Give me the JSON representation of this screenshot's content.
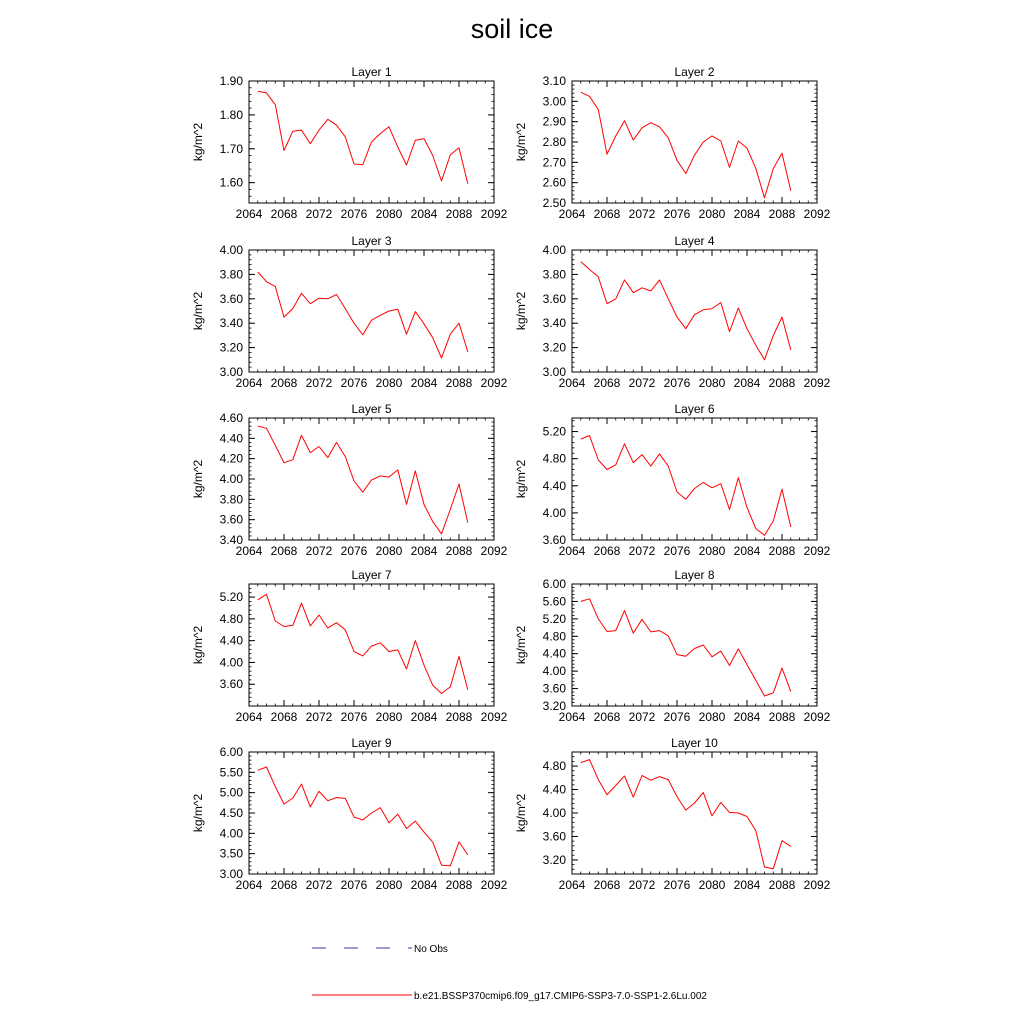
{
  "title": "soil ice",
  "x_ticks": [
    2064,
    2068,
    2072,
    2076,
    2080,
    2084,
    2088,
    2092
  ],
  "legend": {
    "entries": [
      {
        "label": "No Obs",
        "color": "#3a3aa8",
        "style": "dashed"
      },
      {
        "label": "b.e21.BSSP370cmip6.f09_g17.CMIP6-SSP3-7.0-SSP1-2.6Lu.002",
        "color": "#ff0000",
        "style": "solid"
      }
    ]
  },
  "chart_data": [
    {
      "type": "line",
      "title": "Layer 1",
      "ylabel": "kg/m^2",
      "xlim": [
        2064,
        2092
      ],
      "ylim": [
        1.54,
        1.9
      ],
      "yticks": [
        "1.60",
        "1.70",
        "1.80",
        "1.90"
      ],
      "ytick_values": [
        1.6,
        1.7,
        1.8,
        1.9
      ],
      "x": [
        2065,
        2066,
        2067,
        2068,
        2069,
        2070,
        2071,
        2072,
        2073,
        2074,
        2075,
        2076,
        2077,
        2078,
        2079,
        2080,
        2081,
        2082,
        2083,
        2084,
        2085,
        2086,
        2087,
        2088,
        2089
      ],
      "series": [
        {
          "values": [
            1.87,
            1.865,
            1.83,
            1.695,
            1.752,
            1.755,
            1.715,
            1.755,
            1.787,
            1.77,
            1.735,
            1.655,
            1.653,
            1.72,
            1.745,
            1.765,
            1.705,
            1.652,
            1.725,
            1.73,
            1.68,
            1.605,
            1.682,
            1.703,
            1.597
          ],
          "color": "#ff0000"
        }
      ]
    },
    {
      "type": "line",
      "title": "Layer 2",
      "ylabel": "kg/m^2",
      "xlim": [
        2064,
        2092
      ],
      "ylim": [
        2.5,
        3.1
      ],
      "yticks": [
        "2.50",
        "2.60",
        "2.70",
        "2.80",
        "2.90",
        "3.00",
        "3.10"
      ],
      "ytick_values": [
        2.5,
        2.6,
        2.7,
        2.8,
        2.9,
        3.0,
        3.1
      ],
      "x": [
        2065,
        2066,
        2067,
        2068,
        2069,
        2070,
        2071,
        2072,
        2073,
        2074,
        2075,
        2076,
        2077,
        2078,
        2079,
        2080,
        2081,
        2082,
        2083,
        2084,
        2085,
        2086,
        2087,
        2088,
        2089
      ],
      "series": [
        {
          "values": [
            3.045,
            3.025,
            2.96,
            2.74,
            2.83,
            2.905,
            2.81,
            2.87,
            2.895,
            2.875,
            2.82,
            2.71,
            2.645,
            2.735,
            2.8,
            2.83,
            2.805,
            2.675,
            2.805,
            2.77,
            2.67,
            2.525,
            2.67,
            2.745,
            2.56
          ],
          "color": "#ff0000"
        }
      ]
    },
    {
      "type": "line",
      "title": "Layer 3",
      "ylabel": "kg/m^2",
      "xlim": [
        2064,
        2092
      ],
      "ylim": [
        3.0,
        4.0
      ],
      "yticks": [
        "3.00",
        "3.20",
        "3.40",
        "3.60",
        "3.80",
        "4.00"
      ],
      "ytick_values": [
        3.0,
        3.2,
        3.4,
        3.6,
        3.8,
        4.0
      ],
      "x": [
        2065,
        2066,
        2067,
        2068,
        2069,
        2070,
        2071,
        2072,
        2073,
        2074,
        2075,
        2076,
        2077,
        2078,
        2079,
        2080,
        2081,
        2082,
        2083,
        2084,
        2085,
        2086,
        2087,
        2088,
        2089
      ],
      "series": [
        {
          "values": [
            3.82,
            3.74,
            3.7,
            3.45,
            3.52,
            3.645,
            3.56,
            3.605,
            3.6,
            3.635,
            3.52,
            3.4,
            3.305,
            3.425,
            3.465,
            3.5,
            3.515,
            3.31,
            3.495,
            3.395,
            3.28,
            3.115,
            3.31,
            3.4,
            3.165
          ],
          "color": "#ff0000"
        }
      ]
    },
    {
      "type": "line",
      "title": "Layer 4",
      "ylabel": "kg/m^2",
      "xlim": [
        2064,
        2092
      ],
      "ylim": [
        3.0,
        4.0
      ],
      "yticks": [
        "3.00",
        "3.20",
        "3.40",
        "3.60",
        "3.80",
        "4.00"
      ],
      "ytick_values": [
        3.0,
        3.2,
        3.4,
        3.6,
        3.8,
        4.0
      ],
      "x": [
        2065,
        2066,
        2067,
        2068,
        2069,
        2070,
        2071,
        2072,
        2073,
        2074,
        2075,
        2076,
        2077,
        2078,
        2079,
        2080,
        2081,
        2082,
        2083,
        2084,
        2085,
        2086,
        2087,
        2088,
        2089
      ],
      "series": [
        {
          "values": [
            3.905,
            3.84,
            3.78,
            3.56,
            3.6,
            3.755,
            3.65,
            3.69,
            3.665,
            3.755,
            3.6,
            3.45,
            3.355,
            3.47,
            3.51,
            3.52,
            3.57,
            3.33,
            3.525,
            3.355,
            3.22,
            3.1,
            3.3,
            3.45,
            3.18
          ],
          "color": "#ff0000"
        }
      ]
    },
    {
      "type": "line",
      "title": "Layer 5",
      "ylabel": "kg/m^2",
      "xlim": [
        2064,
        2092
      ],
      "ylim": [
        3.4,
        4.6
      ],
      "yticks": [
        "3.40",
        "3.60",
        "3.80",
        "4.00",
        "4.20",
        "4.40",
        "4.60"
      ],
      "ytick_values": [
        3.4,
        3.6,
        3.8,
        4.0,
        4.2,
        4.4,
        4.6
      ],
      "x": [
        2065,
        2066,
        2067,
        2068,
        2069,
        2070,
        2071,
        2072,
        2073,
        2074,
        2075,
        2076,
        2077,
        2078,
        2079,
        2080,
        2081,
        2082,
        2083,
        2084,
        2085,
        2086,
        2087,
        2088,
        2089
      ],
      "series": [
        {
          "values": [
            4.52,
            4.5,
            4.33,
            4.16,
            4.19,
            4.43,
            4.26,
            4.32,
            4.21,
            4.36,
            4.22,
            3.98,
            3.87,
            3.99,
            4.03,
            4.02,
            4.09,
            3.75,
            4.08,
            3.75,
            3.58,
            3.46,
            3.7,
            3.95,
            3.57
          ],
          "color": "#ff0000"
        }
      ]
    },
    {
      "type": "line",
      "title": "Layer 6",
      "ylabel": "kg/m^2",
      "xlim": [
        2064,
        2092
      ],
      "ylim": [
        3.6,
        5.4
      ],
      "yticks": [
        "3.60",
        "4.00",
        "4.40",
        "4.80",
        "5.20"
      ],
      "ytick_values": [
        3.6,
        4.0,
        4.4,
        4.8,
        5.2
      ],
      "x": [
        2065,
        2066,
        2067,
        2068,
        2069,
        2070,
        2071,
        2072,
        2073,
        2074,
        2075,
        2076,
        2077,
        2078,
        2079,
        2080,
        2081,
        2082,
        2083,
        2084,
        2085,
        2086,
        2087,
        2088,
        2089
      ],
      "series": [
        {
          "values": [
            5.09,
            5.14,
            4.78,
            4.64,
            4.71,
            5.02,
            4.74,
            4.86,
            4.69,
            4.87,
            4.69,
            4.31,
            4.2,
            4.36,
            4.45,
            4.37,
            4.43,
            4.05,
            4.52,
            4.08,
            3.77,
            3.67,
            3.88,
            4.35,
            3.79
          ],
          "color": "#ff0000"
        }
      ]
    },
    {
      "type": "line",
      "title": "Layer 7",
      "ylabel": "kg/m^2",
      "xlim": [
        2064,
        2092
      ],
      "ylim": [
        3.2,
        5.44
      ],
      "yticks": [
        "3.60",
        "4.00",
        "4.40",
        "4.80",
        "5.20"
      ],
      "ytick_values": [
        3.6,
        4.0,
        4.4,
        4.8,
        5.2
      ],
      "x": [
        2065,
        2066,
        2067,
        2068,
        2069,
        2070,
        2071,
        2072,
        2073,
        2074,
        2075,
        2076,
        2077,
        2078,
        2079,
        2080,
        2081,
        2082,
        2083,
        2084,
        2085,
        2086,
        2087,
        2088,
        2089
      ],
      "series": [
        {
          "values": [
            5.15,
            5.25,
            4.76,
            4.66,
            4.68,
            5.09,
            4.67,
            4.87,
            4.63,
            4.73,
            4.6,
            4.2,
            4.12,
            4.3,
            4.36,
            4.2,
            4.23,
            3.88,
            4.4,
            3.95,
            3.58,
            3.43,
            3.55,
            4.11,
            3.5
          ],
          "color": "#ff0000"
        }
      ]
    },
    {
      "type": "line",
      "title": "Layer 8",
      "ylabel": "kg/m^2",
      "xlim": [
        2064,
        2092
      ],
      "ylim": [
        3.2,
        6.0
      ],
      "yticks": [
        "3.20",
        "3.60",
        "4.00",
        "4.40",
        "4.80",
        "5.20",
        "5.60",
        "6.00"
      ],
      "ytick_values": [
        3.2,
        3.6,
        4.0,
        4.4,
        4.8,
        5.2,
        5.6,
        6.0
      ],
      "x": [
        2065,
        2066,
        2067,
        2068,
        2069,
        2070,
        2071,
        2072,
        2073,
        2074,
        2075,
        2076,
        2077,
        2078,
        2079,
        2080,
        2081,
        2082,
        2083,
        2084,
        2085,
        2086,
        2087,
        2088,
        2089
      ],
      "series": [
        {
          "values": [
            5.6,
            5.66,
            5.2,
            4.91,
            4.93,
            5.39,
            4.87,
            5.19,
            4.9,
            4.93,
            4.81,
            4.38,
            4.34,
            4.52,
            4.6,
            4.33,
            4.46,
            4.13,
            4.51,
            4.15,
            3.79,
            3.43,
            3.5,
            4.07,
            3.53
          ],
          "color": "#ff0000"
        }
      ]
    },
    {
      "type": "line",
      "title": "Layer 9",
      "ylabel": "kg/m^2",
      "xlim": [
        2064,
        2092
      ],
      "ylim": [
        3.0,
        6.0
      ],
      "yticks": [
        "3.00",
        "3.50",
        "4.00",
        "4.50",
        "5.00",
        "5.50",
        "6.00"
      ],
      "ytick_values": [
        3.0,
        3.5,
        4.0,
        4.5,
        5.0,
        5.5,
        6.0
      ],
      "x": [
        2065,
        2066,
        2067,
        2068,
        2069,
        2070,
        2071,
        2072,
        2073,
        2074,
        2075,
        2076,
        2077,
        2078,
        2079,
        2080,
        2081,
        2082,
        2083,
        2084,
        2085,
        2086,
        2087,
        2088,
        2089
      ],
      "series": [
        {
          "values": [
            5.55,
            5.63,
            5.15,
            4.72,
            4.87,
            5.21,
            4.65,
            5.03,
            4.8,
            4.88,
            4.86,
            4.4,
            4.33,
            4.5,
            4.63,
            4.26,
            4.47,
            4.12,
            4.3,
            4.03,
            3.78,
            3.22,
            3.2,
            3.79,
            3.47
          ],
          "color": "#ff0000"
        }
      ]
    },
    {
      "type": "line",
      "title": "Layer 10",
      "ylabel": "kg/m^2",
      "xlim": [
        2064,
        2092
      ],
      "ylim": [
        2.96,
        5.04
      ],
      "yticks": [
        "3.20",
        "3.60",
        "4.00",
        "4.40",
        "4.80"
      ],
      "ytick_values": [
        3.2,
        3.6,
        4.0,
        4.4,
        4.8
      ],
      "x": [
        2065,
        2066,
        2067,
        2068,
        2069,
        2070,
        2071,
        2072,
        2073,
        2074,
        2075,
        2076,
        2077,
        2078,
        2079,
        2080,
        2081,
        2082,
        2083,
        2084,
        2085,
        2086,
        2087,
        2088,
        2089
      ],
      "series": [
        {
          "values": [
            4.86,
            4.91,
            4.57,
            4.31,
            4.47,
            4.63,
            4.27,
            4.64,
            4.56,
            4.62,
            4.57,
            4.28,
            4.05,
            4.17,
            4.35,
            3.95,
            4.18,
            4.01,
            4.0,
            3.94,
            3.7,
            3.08,
            3.05,
            3.53,
            3.43
          ],
          "color": "#ff0000"
        }
      ]
    }
  ]
}
